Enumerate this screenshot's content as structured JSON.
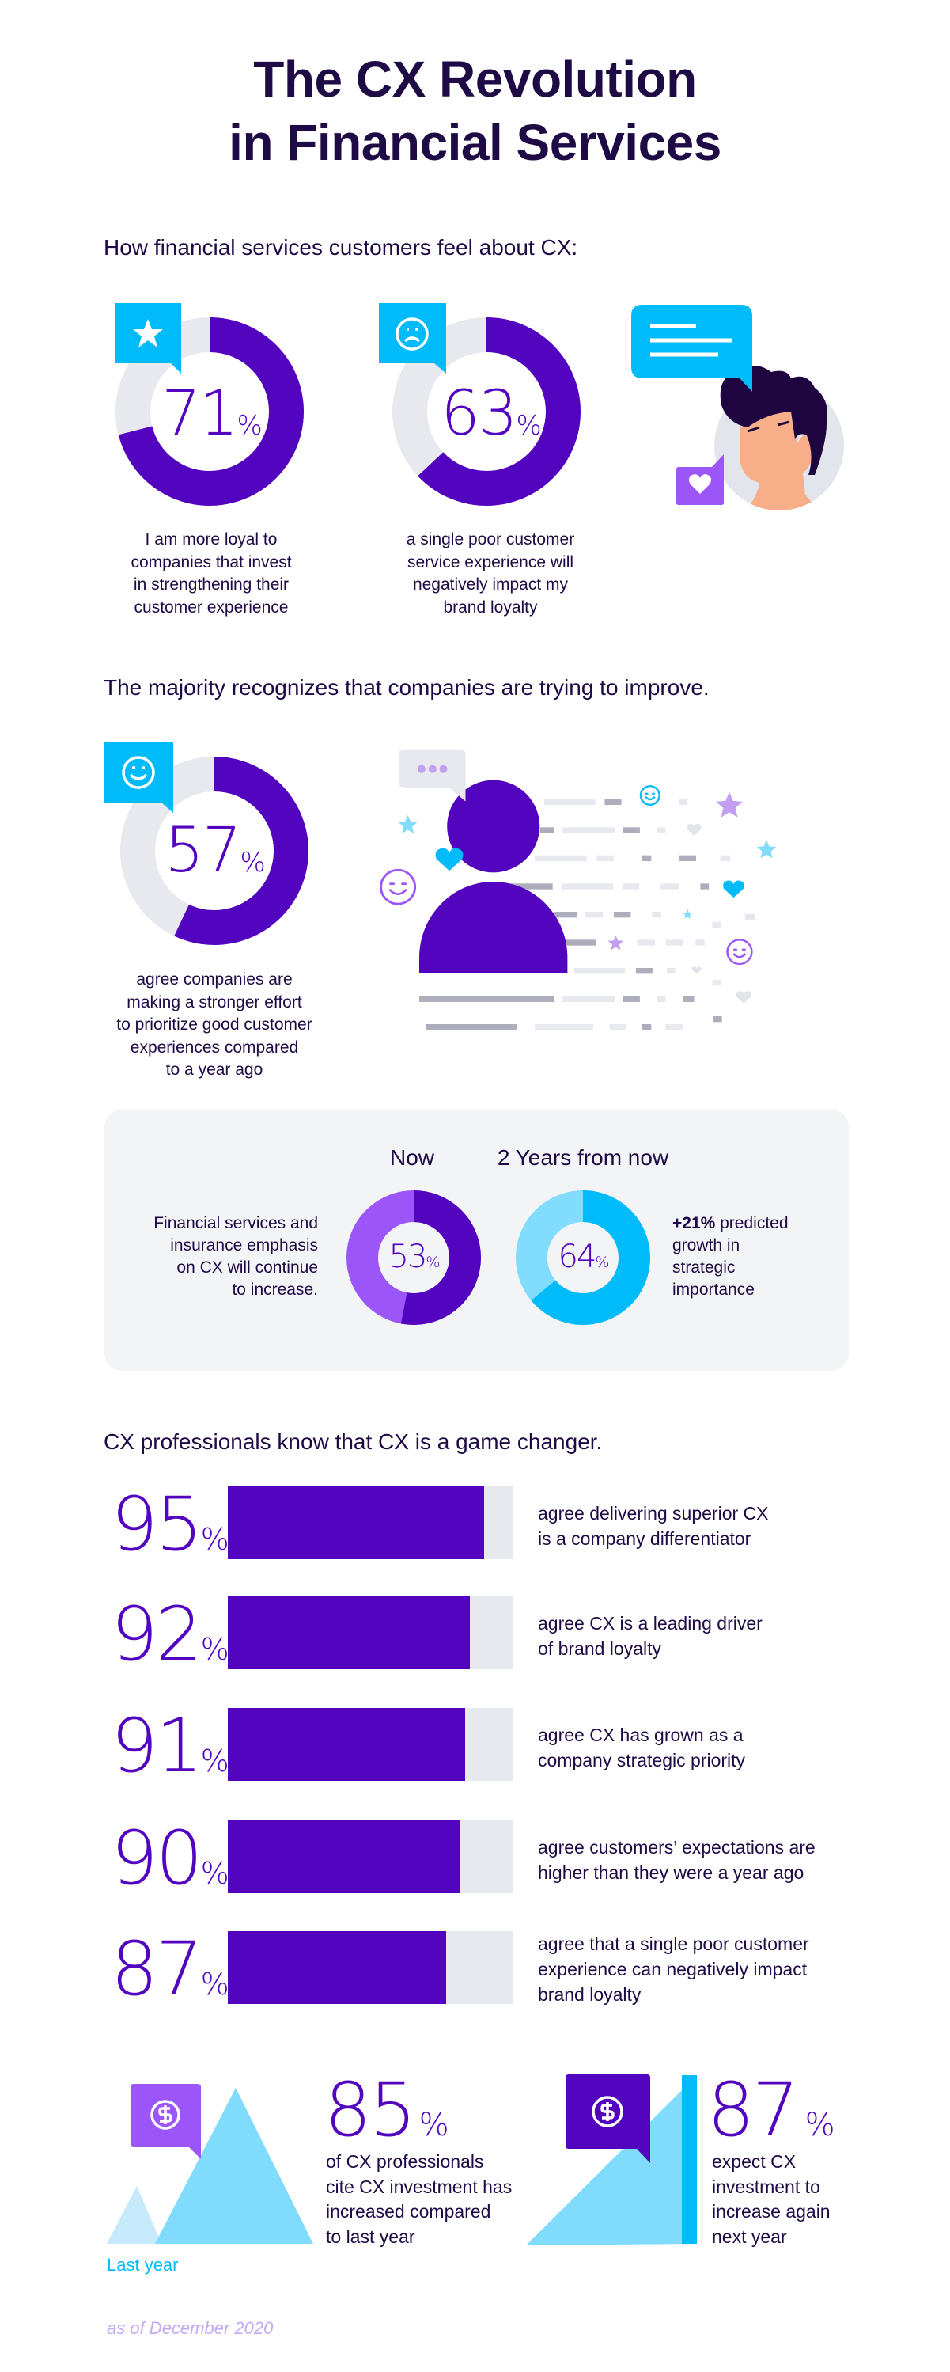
{
  "title": {
    "line1": "The CX Revolution",
    "line2": "in Financial Services"
  },
  "section1": {
    "heading": "How financial services customers feel about CX:",
    "icons": [
      "star-icon",
      "sad-face-icon",
      "speech-bubble-icon",
      "heart-icon",
      "person-avatar"
    ]
  },
  "section2": {
    "heading": "The majority recognizes that companies are trying to improve.",
    "icons": [
      "smiley-icon",
      "user-icon",
      "star-icon",
      "heart-icon",
      "chat-dots-icon"
    ]
  },
  "emphasis_box": {
    "now_label": "Now",
    "future_label": "2 Years from now",
    "left_text": [
      "Financial services and",
      "insurance emphasis",
      "on CX will continue",
      "to increase."
    ],
    "growth_bold": "+21%",
    "growth_text": [
      " predicted",
      "growth in",
      "strategic",
      "importance"
    ]
  },
  "section3": {
    "heading": "CX professionals know that CX is a game changer."
  },
  "investment": {
    "left": {
      "value": "85",
      "unit": "%",
      "text": [
        "of CX professionals",
        "cite CX investment has",
        "increased compared",
        "to last year"
      ],
      "axis_label": "Last year",
      "icon": "dollar-icon"
    },
    "right": {
      "value": "87",
      "unit": "%",
      "text": [
        "expect CX",
        "investment to",
        "increase again",
        "next year"
      ],
      "icon": "dollar-icon"
    }
  },
  "footnote": "as of December 2020",
  "colors": {
    "primary_purple": "#5204bf",
    "light_purple": "#9b55f8",
    "cyan": "#00bbf9",
    "light_cyan": "#82dcfd",
    "track_gray": "#e8e9ef",
    "navy_text": "#1e0a45"
  },
  "chart_data": [
    {
      "type": "pie",
      "variant": "donut",
      "values": [
        71,
        29
      ],
      "label": "71",
      "unit": "%",
      "caption": [
        "I am more loyal to",
        "companies that invest",
        "in strengthening their",
        "customer experience"
      ],
      "colors": [
        "#5204bf",
        "#e8e9ef"
      ]
    },
    {
      "type": "pie",
      "variant": "donut",
      "values": [
        63,
        37
      ],
      "label": "63",
      "unit": "%",
      "caption": [
        "a single poor customer",
        "service experience will",
        "negatively impact my",
        "brand loyalty"
      ],
      "colors": [
        "#5204bf",
        "#e8e9ef"
      ]
    },
    {
      "type": "pie",
      "variant": "donut",
      "values": [
        57,
        43
      ],
      "label": "57",
      "unit": "%",
      "caption": [
        "agree companies are",
        "making a stronger effort",
        "to prioritize good customer",
        "experiences compared",
        "to a year ago"
      ],
      "colors": [
        "#5204bf",
        "#e8e9ef"
      ]
    },
    {
      "type": "pie",
      "variant": "donut",
      "values": [
        53,
        47
      ],
      "label": "53",
      "unit": "%",
      "title": "Now",
      "colors": [
        "#5204bf",
        "#9b55f8"
      ]
    },
    {
      "type": "pie",
      "variant": "donut",
      "values": [
        64,
        36
      ],
      "label": "64",
      "unit": "%",
      "title": "2 Years from now",
      "colors": [
        "#00bbf9",
        "#82dcfd"
      ]
    },
    {
      "type": "bar",
      "orientation": "horizontal",
      "values": [
        95,
        92,
        91,
        90,
        87
      ],
      "unit": "%",
      "categories": [
        [
          "agree delivering superior CX",
          "is a company differentiator"
        ],
        [
          "agree CX is a leading driver",
          "of brand loyalty"
        ],
        [
          "agree CX has grown as a",
          "company strategic priority"
        ],
        [
          "agree customers’ expectations are",
          "higher than they were a year ago"
        ],
        [
          "agree that a single poor customer",
          "experience can negatively impact",
          "brand loyalty"
        ]
      ],
      "grid": false
    }
  ]
}
